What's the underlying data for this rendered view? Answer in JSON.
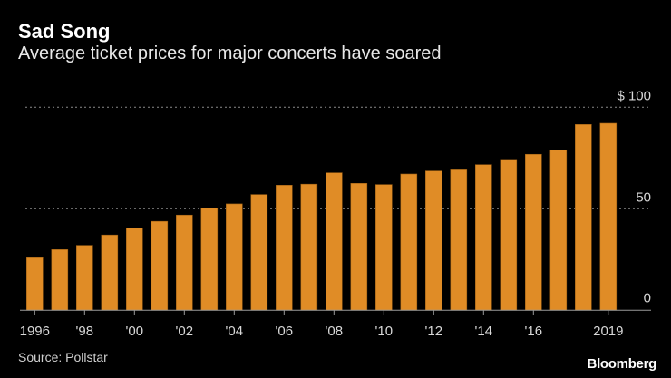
{
  "header": {
    "title": "Sad Song",
    "subtitle": "Average ticket prices for major concerts have soared"
  },
  "footer": {
    "source": "Source: Pollstar",
    "logo": "Bloomberg"
  },
  "colors": {
    "bar": "#e08c26",
    "grid": "#8a8a8a",
    "axis": "#999999",
    "background": "#000000"
  },
  "chart_data": {
    "type": "bar",
    "title": "Sad Song",
    "subtitle": "Average ticket prices for major concerts have soared",
    "xlabel": "",
    "ylabel": "",
    "categories": [
      "1996",
      "1997",
      "1998",
      "1999",
      "2000",
      "2001",
      "2002",
      "2003",
      "2004",
      "2005",
      "2006",
      "2007",
      "2008",
      "2009",
      "2010",
      "2011",
      "2012",
      "2013",
      "2014",
      "2015",
      "2016",
      "2017",
      "2018",
      "2019"
    ],
    "values": [
      25.9,
      29.9,
      32.0,
      37.1,
      40.6,
      43.8,
      46.9,
      50.4,
      52.4,
      57.0,
      61.6,
      62.1,
      67.7,
      62.5,
      61.9,
      67.1,
      68.6,
      69.6,
      71.7,
      74.3,
      76.8,
      78.9,
      91.5,
      92.1
    ],
    "ylim": [
      0,
      100
    ],
    "yticks": [
      {
        "value": 0,
        "label": "0"
      },
      {
        "value": 50,
        "label": "50"
      },
      {
        "value": 100,
        "label": "$ 100"
      }
    ],
    "xtick_labels": [
      {
        "index": 0,
        "label": "1996"
      },
      {
        "index": 2,
        "label": "'98"
      },
      {
        "index": 4,
        "label": "'00"
      },
      {
        "index": 6,
        "label": "'02"
      },
      {
        "index": 8,
        "label": "'04"
      },
      {
        "index": 10,
        "label": "'06"
      },
      {
        "index": 12,
        "label": "'08"
      },
      {
        "index": 14,
        "label": "'10"
      },
      {
        "index": 16,
        "label": "'12"
      },
      {
        "index": 18,
        "label": "'14"
      },
      {
        "index": 20,
        "label": "'16"
      },
      {
        "index": 23,
        "label": "2019"
      }
    ],
    "grid": true,
    "legend": "none"
  }
}
